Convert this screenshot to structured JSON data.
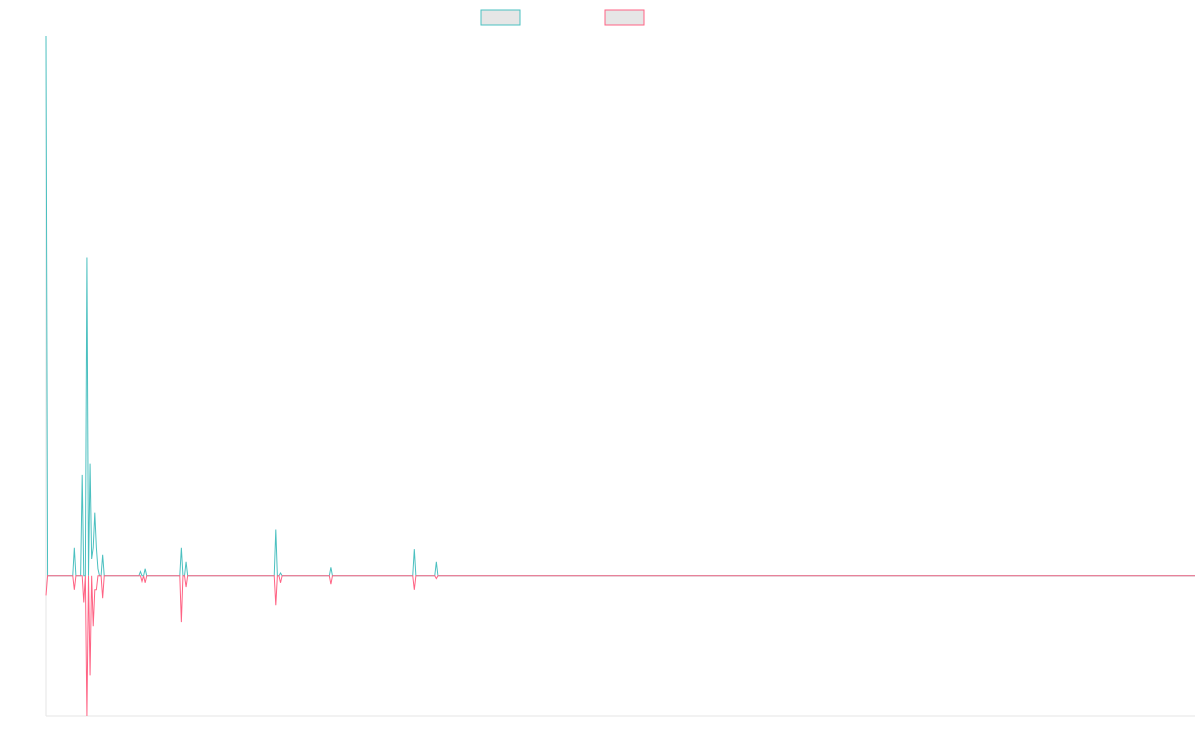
{
  "chart_data": {
    "type": "line",
    "title": "",
    "xlabel": "",
    "ylabel": "",
    "grid": false,
    "legend_position": "top-center",
    "x_range": [
      0,
      1460
    ],
    "y_range": [
      -1,
      3.85
    ],
    "series": [
      {
        "color": "#4bc0c0",
        "points": [
          [
            0,
            3.85
          ],
          [
            2,
            0
          ],
          [
            34,
            0
          ],
          [
            36,
            0.2
          ],
          [
            38,
            0
          ],
          [
            44,
            0
          ],
          [
            46,
            0.72
          ],
          [
            48,
            0
          ],
          [
            50,
            0
          ],
          [
            52,
            2.27
          ],
          [
            54,
            0
          ],
          [
            56,
            0.8
          ],
          [
            58,
            0.12
          ],
          [
            60,
            0.2
          ],
          [
            62,
            0.45
          ],
          [
            64,
            0.2
          ],
          [
            66,
            0.05
          ],
          [
            68,
            0
          ],
          [
            70,
            0
          ],
          [
            72,
            0.15
          ],
          [
            74,
            0
          ],
          [
            118,
            0
          ],
          [
            120,
            0.03
          ],
          [
            122,
            0
          ],
          [
            124,
            0
          ],
          [
            126,
            0.05
          ],
          [
            128,
            0
          ],
          [
            134,
            0
          ],
          [
            170,
            0
          ],
          [
            172,
            0.2
          ],
          [
            174,
            0
          ],
          [
            176,
            0
          ],
          [
            178,
            0.1
          ],
          [
            180,
            0
          ],
          [
            290,
            0
          ],
          [
            292,
            0.33
          ],
          [
            294,
            0
          ],
          [
            296,
            0
          ],
          [
            298,
            0.02
          ],
          [
            300,
            0
          ],
          [
            360,
            0
          ],
          [
            362,
            0.06
          ],
          [
            364,
            0
          ],
          [
            466,
            0
          ],
          [
            468,
            0.19
          ],
          [
            470,
            0
          ],
          [
            494,
            0
          ],
          [
            496,
            0.1
          ],
          [
            498,
            0
          ],
          [
            1460,
            0
          ]
        ]
      },
      {
        "color": "#ff6384",
        "points": [
          [
            0,
            -0.14
          ],
          [
            2,
            0
          ],
          [
            34,
            0
          ],
          [
            36,
            -0.1
          ],
          [
            38,
            0
          ],
          [
            46,
            0
          ],
          [
            48,
            -0.19
          ],
          [
            50,
            0
          ],
          [
            52,
            -1
          ],
          [
            54,
            0
          ],
          [
            56,
            -0.71
          ],
          [
            58,
            0
          ],
          [
            60,
            -0.36
          ],
          [
            62,
            -0.1
          ],
          [
            64,
            -0.1
          ],
          [
            66,
            0
          ],
          [
            70,
            0
          ],
          [
            72,
            -0.16
          ],
          [
            74,
            0
          ],
          [
            120,
            0
          ],
          [
            122,
            -0.04
          ],
          [
            124,
            0
          ],
          [
            126,
            -0.05
          ],
          [
            128,
            0
          ],
          [
            170,
            0
          ],
          [
            172,
            -0.33
          ],
          [
            174,
            0
          ],
          [
            176,
            0
          ],
          [
            178,
            -0.08
          ],
          [
            180,
            0
          ],
          [
            290,
            0
          ],
          [
            292,
            -0.21
          ],
          [
            294,
            0
          ],
          [
            296,
            0
          ],
          [
            298,
            -0.05
          ],
          [
            300,
            0
          ],
          [
            360,
            0
          ],
          [
            362,
            -0.06
          ],
          [
            364,
            0
          ],
          [
            466,
            0
          ],
          [
            468,
            -0.1
          ],
          [
            470,
            0
          ],
          [
            494,
            0
          ],
          [
            496,
            -0.02
          ],
          [
            498,
            0
          ],
          [
            1460,
            0
          ]
        ]
      }
    ]
  }
}
